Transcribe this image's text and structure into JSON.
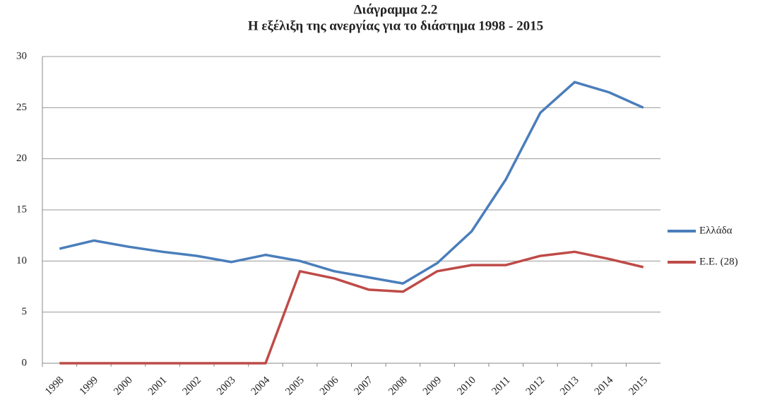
{
  "chart_data": {
    "type": "line",
    "title": "Διάγραμμα 2.2",
    "subtitle": "Η εξέλιξη της ανεργίας για το διάστημα 1998 - 2015",
    "categories": [
      "1998",
      "1999",
      "2000",
      "2001",
      "2002",
      "2003",
      "2004",
      "2005",
      "2006",
      "2007",
      "2008",
      "2009",
      "2010",
      "2011",
      "2012",
      "2013",
      "2014",
      "2015"
    ],
    "series": [
      {
        "name": "Ελλάδα",
        "color": "#4a7ebb",
        "values": [
          11.2,
          12.0,
          11.4,
          10.9,
          10.5,
          9.9,
          10.6,
          10.0,
          9.0,
          8.4,
          7.8,
          9.8,
          12.9,
          18.0,
          24.5,
          27.5,
          26.5,
          25.0
        ]
      },
      {
        "name": "Ε.Ε. (28)",
        "color": "#be4b48",
        "values": [
          0,
          0,
          0,
          0,
          0,
          0,
          0,
          9.0,
          8.3,
          7.2,
          7.0,
          9.0,
          9.6,
          9.6,
          10.5,
          10.9,
          10.2,
          9.4
        ]
      }
    ],
    "ylim": [
      0,
      30
    ],
    "yticks": [
      0,
      5,
      10,
      15,
      20,
      25,
      30
    ],
    "grid": true,
    "legend": "right"
  }
}
